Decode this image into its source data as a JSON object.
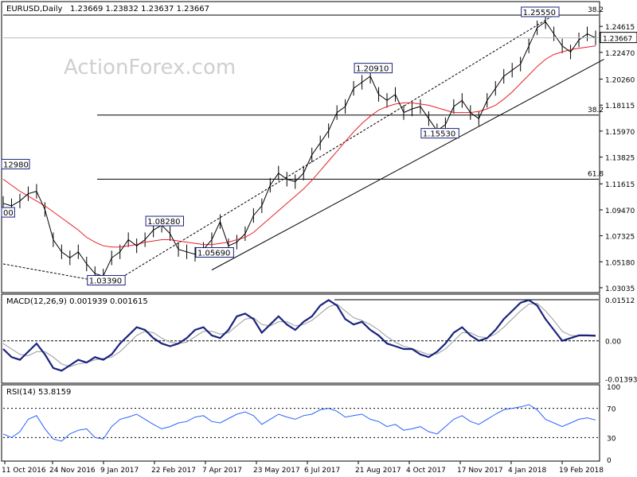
{
  "header": {
    "symbol": "EURUSD,Daily",
    "ohlc": "1.23669 1.23832 1.23637 1.23667"
  },
  "watermark": "ActionForex.com",
  "colors": {
    "price": "#000000",
    "ma": "#e8202a",
    "macd": "#1a237e",
    "signal": "#999999",
    "rsi": "#2962ff",
    "box_label_border": "#1a237e",
    "current_price_bg": "#ffffff"
  },
  "chart_data": [
    {
      "type": "line",
      "panel": "price",
      "ylim": [
        1.029,
        1.264
      ],
      "y_ticks": [
        "1.24615",
        "1.22470",
        "1.20260",
        "1.18115",
        "1.15970",
        "1.13825",
        "1.11615",
        "1.09470",
        "1.07325",
        "1.05180",
        "1.03035"
      ],
      "y_tick_values": [
        1.24615,
        1.2247,
        1.2026,
        1.18115,
        1.1597,
        1.13825,
        1.11615,
        1.0947,
        1.07325,
        1.0518,
        1.03035
      ],
      "x_ticks": [
        "11 Oct 2016",
        "24 Nov 2016",
        "9 Jan 2017",
        "22 Feb 2017",
        "7 Apr 2017",
        "23 May 2017",
        "6 Jul 2017",
        "21 Aug 2017",
        "4 Oct 2017",
        "17 Nov 2017",
        "4 Jan 2018",
        "19 Feb 2018"
      ],
      "current_price": "1.23667",
      "current_price_value": 1.23667,
      "series": [
        {
          "name": "EURUSD",
          "values": [
            1.1,
            1.098,
            1.102,
            1.108,
            1.11,
            1.095,
            1.07,
            1.06,
            1.055,
            1.06,
            1.05,
            1.042,
            1.04,
            1.055,
            1.06,
            1.07,
            1.065,
            1.07,
            1.078,
            1.082,
            1.075,
            1.062,
            1.06,
            1.058,
            1.062,
            1.07,
            1.085,
            1.065,
            1.068,
            1.075,
            1.09,
            1.098,
            1.115,
            1.125,
            1.12,
            1.118,
            1.125,
            1.14,
            1.15,
            1.16,
            1.175,
            1.18,
            1.195,
            1.2,
            1.205,
            1.19,
            1.185,
            1.19,
            1.175,
            1.178,
            1.18,
            1.17,
            1.16,
            1.165,
            1.18,
            1.185,
            1.175,
            1.17,
            1.185,
            1.195,
            1.205,
            1.21,
            1.215,
            1.23,
            1.245,
            1.25,
            1.24,
            1.23,
            1.225,
            1.235,
            1.24,
            1.2367
          ]
        },
        {
          "name": "MA",
          "values": [
            1.12,
            1.115,
            1.11,
            1.106,
            1.102,
            1.098,
            1.093,
            1.088,
            1.083,
            1.078,
            1.072,
            1.068,
            1.065,
            1.064,
            1.064,
            1.065,
            1.066,
            1.068,
            1.069,
            1.07,
            1.07,
            1.069,
            1.068,
            1.067,
            1.066,
            1.066,
            1.067,
            1.068,
            1.07,
            1.072,
            1.076,
            1.082,
            1.088,
            1.094,
            1.1,
            1.106,
            1.112,
            1.119,
            1.127,
            1.135,
            1.143,
            1.151,
            1.159,
            1.166,
            1.172,
            1.177,
            1.18,
            1.182,
            1.183,
            1.183,
            1.182,
            1.181,
            1.179,
            1.177,
            1.175,
            1.175,
            1.175,
            1.176,
            1.178,
            1.181,
            1.186,
            1.192,
            1.199,
            1.206,
            1.213,
            1.219,
            1.223,
            1.225,
            1.227,
            1.228,
            1.229,
            1.23
          ]
        }
      ],
      "annotations": [
        {
          "label": "1.25550",
          "x_index": 64,
          "y": 1.2555
        },
        {
          "label": "1.20910",
          "x_index": 44,
          "y": 1.2091
        },
        {
          "label": "1.15530",
          "x_index": 52,
          "y": 1.1553
        },
        {
          "label": "1.08280",
          "x_index": 19,
          "y": 1.0828
        },
        {
          "label": "1.05690",
          "x_index": 25,
          "y": 1.0569
        },
        {
          "label": "1.03390",
          "x_index": 12,
          "y": 1.0339
        },
        {
          "label": "12980",
          "x_index": 0,
          "y": 1.1298
        },
        {
          "label": "00",
          "x_index": 0,
          "y": 1.09
        }
      ],
      "fib_levels": [
        {
          "label": "38.2",
          "y": 1.2555
        },
        {
          "label": "38.2",
          "y": 1.1729
        },
        {
          "label": "61.8",
          "y": 1.12
        }
      ],
      "trendlines": [
        {
          "from": [
            25,
            1.045
          ],
          "to": [
            72,
            1.219
          ]
        },
        {
          "from": [
            13,
            1.0339
          ],
          "to": [
            66,
            1.2555
          ]
        },
        {
          "from": [
            0,
            1.05
          ],
          "to": [
            13,
            1.0339
          ]
        }
      ]
    },
    {
      "type": "line",
      "panel": "macd",
      "title": "MACD(12,26,9) 0.001939 0.001615",
      "ylim": [
        -0.015,
        0.016
      ],
      "y_ticks": [
        "0.01512",
        "0.00",
        "-0.013938"
      ],
      "y_tick_values": [
        0.01512,
        0.0,
        -0.013938
      ],
      "series": [
        {
          "name": "MACD",
          "values": [
            -0.003,
            -0.006,
            -0.007,
            -0.004,
            -0.001,
            -0.005,
            -0.01,
            -0.011,
            -0.009,
            -0.007,
            -0.008,
            -0.006,
            -0.007,
            -0.005,
            -0.001,
            0.002,
            0.005,
            0.004,
            0.001,
            -0.001,
            -0.002,
            -0.001,
            0.001,
            0.004,
            0.005,
            0.002,
            0.001,
            0.004,
            0.009,
            0.01,
            0.008,
            0.003,
            0.006,
            0.009,
            0.006,
            0.004,
            0.007,
            0.009,
            0.013,
            0.015,
            0.013,
            0.008,
            0.006,
            0.007,
            0.004,
            0.002,
            -0.001,
            -0.002,
            -0.003,
            -0.003,
            -0.005,
            -0.006,
            -0.004,
            -0.001,
            0.003,
            0.005,
            0.002,
            0.0,
            0.001,
            0.004,
            0.008,
            0.011,
            0.014,
            0.015,
            0.013,
            0.008,
            0.004,
            0.0,
            0.001,
            0.002,
            0.002,
            0.0019
          ]
        },
        {
          "name": "Signal",
          "values": [
            -0.001,
            -0.003,
            -0.005,
            -0.0055,
            -0.004,
            -0.004,
            -0.006,
            -0.0085,
            -0.0095,
            -0.0085,
            -0.008,
            -0.007,
            -0.0065,
            -0.006,
            -0.004,
            -0.001,
            0.002,
            0.0035,
            0.003,
            0.001,
            -0.0005,
            -0.001,
            -0.0005,
            0.0015,
            0.0035,
            0.0035,
            0.0025,
            0.003,
            0.0055,
            0.008,
            0.0085,
            0.006,
            0.0055,
            0.007,
            0.007,
            0.0055,
            0.006,
            0.0075,
            0.01,
            0.0125,
            0.0135,
            0.011,
            0.0085,
            0.0075,
            0.006,
            0.004,
            0.0015,
            -0.0005,
            -0.002,
            -0.0028,
            -0.004,
            -0.005,
            -0.0048,
            -0.003,
            0.0,
            0.003,
            0.003,
            0.0015,
            0.0012,
            0.0025,
            0.005,
            0.008,
            0.011,
            0.0135,
            0.0138,
            0.011,
            0.0075,
            0.0035,
            0.002,
            0.0018,
            0.0018,
            0.0016
          ]
        }
      ]
    },
    {
      "type": "line",
      "panel": "rsi",
      "title": "RSI(14) 53.8159",
      "ylim": [
        0,
        100
      ],
      "y_ticks": [
        "100",
        "70",
        "30",
        "0"
      ],
      "y_tick_values": [
        100,
        70,
        30,
        0
      ],
      "series": [
        {
          "name": "RSI",
          "values": [
            35,
            30,
            38,
            55,
            60,
            42,
            28,
            25,
            35,
            40,
            42,
            30,
            28,
            45,
            55,
            58,
            62,
            55,
            48,
            42,
            45,
            50,
            52,
            58,
            60,
            52,
            50,
            56,
            62,
            65,
            60,
            48,
            55,
            62,
            58,
            55,
            60,
            62,
            68,
            70,
            66,
            58,
            60,
            62,
            55,
            52,
            45,
            48,
            40,
            42,
            45,
            38,
            35,
            45,
            55,
            60,
            52,
            48,
            55,
            62,
            68,
            70,
            72,
            75,
            68,
            55,
            50,
            45,
            50,
            55,
            57,
            54
          ]
        }
      ]
    }
  ]
}
